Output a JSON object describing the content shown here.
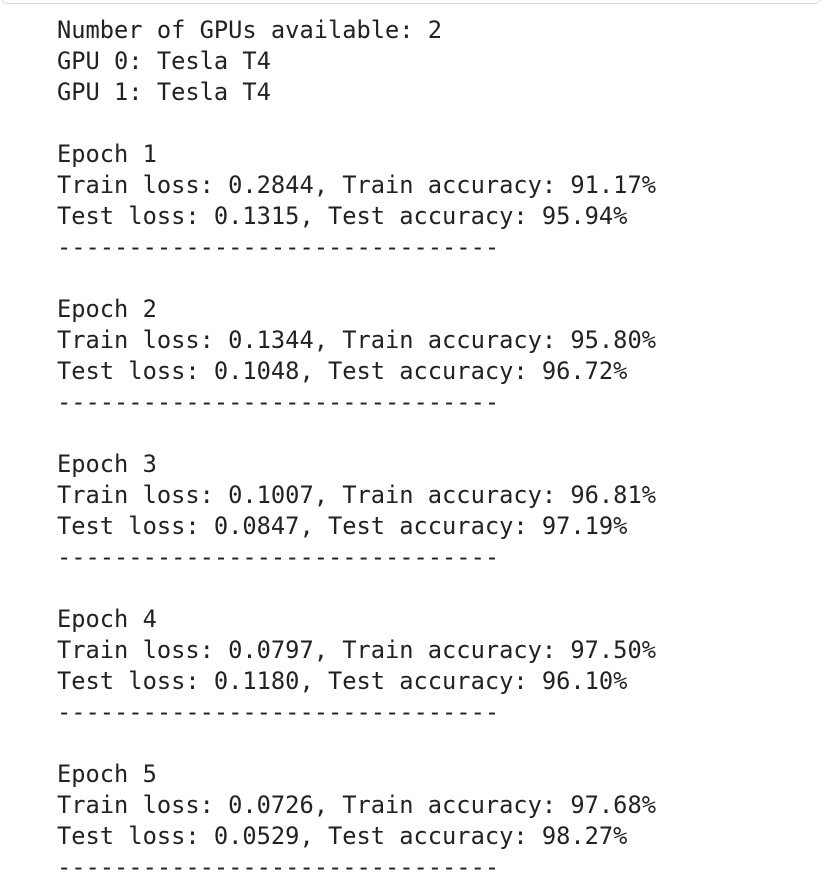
{
  "output": {
    "header_lines": [
      "Number of GPUs available: 2",
      "GPU 0: Tesla T4",
      "GPU 1: Tesla T4"
    ],
    "epochs": [
      {
        "title": "Epoch 1",
        "train": "Train loss: 0.2844, Train accuracy: 91.17%",
        "test": "Test loss: 0.1315, Test accuracy: 95.94%",
        "separator": "-------------------------------"
      },
      {
        "title": "Epoch 2",
        "train": "Train loss: 0.1344, Train accuracy: 95.80%",
        "test": "Test loss: 0.1048, Test accuracy: 96.72%",
        "separator": "-------------------------------"
      },
      {
        "title": "Epoch 3",
        "train": "Train loss: 0.1007, Train accuracy: 96.81%",
        "test": "Test loss: 0.0847, Test accuracy: 97.19%",
        "separator": "-------------------------------"
      },
      {
        "title": "Epoch 4",
        "train": "Train loss: 0.0797, Train accuracy: 97.50%",
        "test": "Test loss: 0.1180, Test accuracy: 96.10%",
        "separator": "-------------------------------"
      },
      {
        "title": "Epoch 5",
        "train": "Train loss: 0.0726, Train accuracy: 97.68%",
        "test": "Test loss: 0.0529, Test accuracy: 98.27%",
        "separator": "-------------------------------"
      }
    ]
  }
}
